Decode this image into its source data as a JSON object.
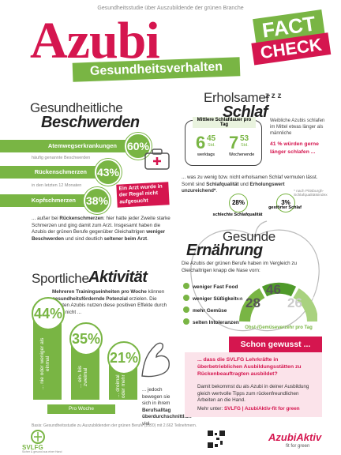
{
  "header": {
    "kicker": "Gesundheitsstudie über Auszubildende der grünen Branche",
    "title": "Azubi",
    "banner": "Gesundheitsverhalten",
    "badge": [
      "FACT",
      "CHECK"
    ]
  },
  "complaints": {
    "title": [
      "Gesundheitliche",
      "Beschwerden"
    ],
    "items": [
      {
        "label": "Atemwegserkrankungen",
        "value": "60%"
      },
      {
        "label": "Rückenschmerzen",
        "value": "43%"
      },
      {
        "label": "Kopfschmerzen",
        "value": "38%"
      }
    ],
    "notes": [
      "häufig genannte Beschwerden",
      "in den letzten 12 Monaten"
    ],
    "callout": "Ein Arzt wurde in der Regel nicht aufgesucht",
    "text": [
      "... außer bei ",
      "Rückenschmerzen",
      ": hier hatte jeder Zweite starke Schmerzen und ging damit zum Arzt. Insgesamt haben die Azubis der grünen Berufe gegenüber Gleichaltrigen ",
      "weniger Beschwerden",
      " und sind deutlich ",
      "seltener beim Arzt",
      "."
    ]
  },
  "sleep": {
    "title": [
      "Erholsamer",
      "Schlaf"
    ],
    "zzz": "z z z",
    "box_title": "Mittlere Schlafdauer pro Tag",
    "weekday": {
      "h": "6",
      "m": "45",
      "unit": "Std.",
      "label": "werktags"
    },
    "weekend": {
      "h": "7",
      "m": "53",
      "unit": "Std.",
      "label": "Wochenende"
    },
    "side_note": "Weibliche Azubis schlafen im Mittel etwas länger als männliche",
    "highlight": "41 % würden gerne länger schlafen ...",
    "text": [
      "... was zu wenig bzw. nicht erholsamen Schlaf vermuten lässt. Somit sind ",
      "Schlafqualität",
      " und ",
      "Erholungswert unzureichend*",
      "."
    ],
    "footnote": "* nach Pittsburgh-Schlafqualitätsindex",
    "stats": [
      {
        "value": "28%",
        "label": "schlechte Schlafqualität"
      },
      {
        "value": "3%",
        "label": "gestörter Schlaf"
      }
    ]
  },
  "nutrition": {
    "title": [
      "Gesunde",
      "Ernährung"
    ],
    "text": "Die Azubis der grünen Berufe haben im Vergleich zu Gleichaltrigen knapp die Nase vorn:",
    "checks": [
      "weniger Fast Food",
      "weniger Süßigkeiten",
      "mehr Gemüse",
      "selten Intoleranzen"
    ],
    "gauge": [
      {
        "label": "mehrmals",
        "value": "28"
      },
      {
        "label": "einmal",
        "value": "46"
      },
      {
        "label": "keinmal",
        "value": "26"
      }
    ],
    "gauge_caption": "Obst-/Gemüseverzehr pro Tag"
  },
  "sport": {
    "title": [
      "Sportliche",
      "Aktivität"
    ],
    "text": [
      "Mehreren Trainingseinheiten pro Woche",
      " können ",
      "gesundheitsfördernde Potenzial",
      " erzielen. Die meisten Azubis nutzen diese positiven Effekte durch Sport nicht ..."
    ],
    "bars": [
      {
        "value": "44%",
        "label": "... nie oder weniger als einmal"
      },
      {
        "value": "35%",
        "label": "... ein- bis zweimal"
      },
      {
        "value": "21%",
        "label": "... dreimal oder mehr"
      }
    ],
    "axis": "Pro Woche",
    "note": [
      "... jedoch bewegen sie sich in ihrem ",
      "Berufsalltag überdurchschnittlich",
      " viel."
    ]
  },
  "info": {
    "title": "Schon gewusst ...",
    "question": "... dass die SVLFG Lehrkräfte in überbetrieblichen Ausbildungsstätten zu Rückenbeauftragten ausbildet?",
    "text": "Damit bekommst du als Azubi in deiner Ausbildung gleich wertvolle Tipps zum rückenfreundlichen Arbeiten an die Hand.",
    "link": [
      "Mehr unter: ",
      "SVLFG | AzubiAktiv-fit for green"
    ]
  },
  "footer": {
    "source": "Basis: Gesundheitsstudie zu Auszubildenden der grünen Berufe (2020) mit 2.662 Teilnehmern.",
    "org": "SVLFG",
    "org_claim": "Sicher & gesund aus einer Hand",
    "brand": "AzubiAktiv",
    "brand_claim": "fit for green"
  }
}
